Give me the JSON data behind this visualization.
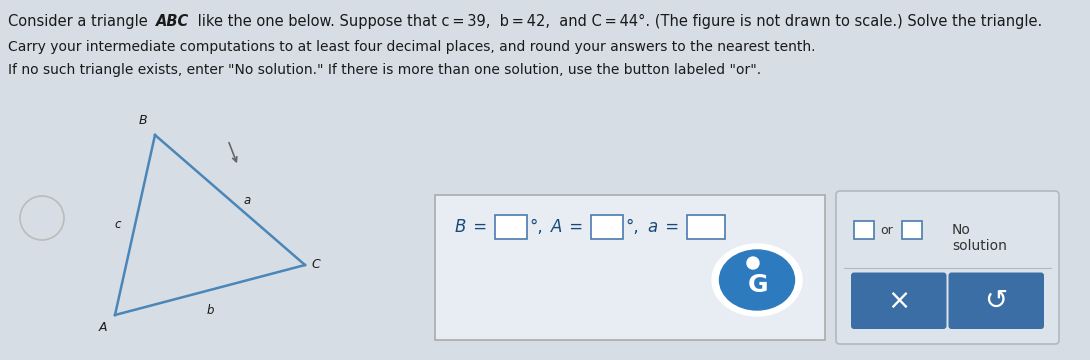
{
  "bg_color": "#d6dde5",
  "text_color": "#1a1a1a",
  "triangle_color": "#4a86b8",
  "answer_box_bg": "#e8edf3",
  "answer_box_border": "#aaaaaa",
  "right_panel_bg": "#dde3ea",
  "right_panel_border": "#b0b8c4",
  "or_box_border": "#4a7ab0",
  "formula_color": "#1a4a7a",
  "grammarly_bg": "#2e7abf",
  "button_bg": "#3a6ea5",
  "button_text_color": "#ffffff",
  "line1_pre": "Consider a triangle ",
  "line1_bold": "ABC",
  "line1_post": " like the one below. Suppose that c = 39,  b = 42,  and C = 44°. (The figure is not drawn to scale.) Solve the triangle.",
  "line2": "Carry your intermediate computations to at least four decimal places, and round your answers to the nearest tenth.",
  "line3": "If no such triangle exists, enter \"No solution.\" If there is more than one solution, use the button labeled \"or\"."
}
